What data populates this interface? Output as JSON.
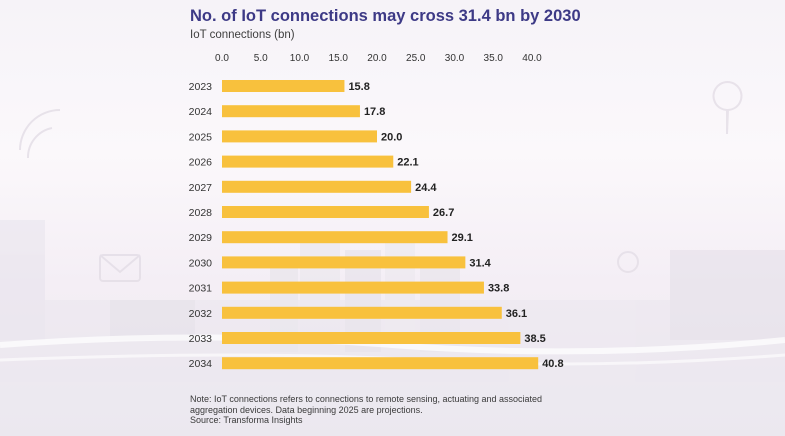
{
  "title": "No. of IoT connections may cross 31.4 bn by 2030",
  "subtitle": "IoT connections (bn)",
  "note_lines": [
    "Note: IoT connections refers to connections to remote sensing, actuating and associated",
    "aggregation devices. Data beginning 2025 are projections."
  ],
  "source": "Source: Transforma Insights",
  "colors": {
    "bar": "#f8c13d",
    "title": "#3d3a86"
  },
  "chart_data": {
    "type": "bar",
    "orientation": "horizontal",
    "categories": [
      "2023",
      "2024",
      "2025",
      "2026",
      "2027",
      "2028",
      "2029",
      "2030",
      "2031",
      "2032",
      "2033",
      "2034"
    ],
    "values": [
      15.8,
      17.8,
      20.0,
      22.1,
      24.4,
      26.7,
      29.1,
      31.4,
      33.8,
      36.1,
      38.5,
      40.8
    ],
    "value_labels": [
      "15.8",
      "17.8",
      "20.0",
      "22.1",
      "24.4",
      "26.7",
      "29.1",
      "31.4",
      "33.8",
      "36.1",
      "38.5",
      "40.8"
    ],
    "x_ticks": [
      0,
      5,
      10,
      15,
      20,
      25,
      30,
      35,
      40
    ],
    "x_tick_labels": [
      "0.0",
      "5.0",
      "10.0",
      "15.0",
      "20.0",
      "25.0",
      "30.0",
      "35.0",
      "40.0"
    ],
    "xlim": [
      0,
      40
    ],
    "axis_position": "top",
    "grid": false
  }
}
